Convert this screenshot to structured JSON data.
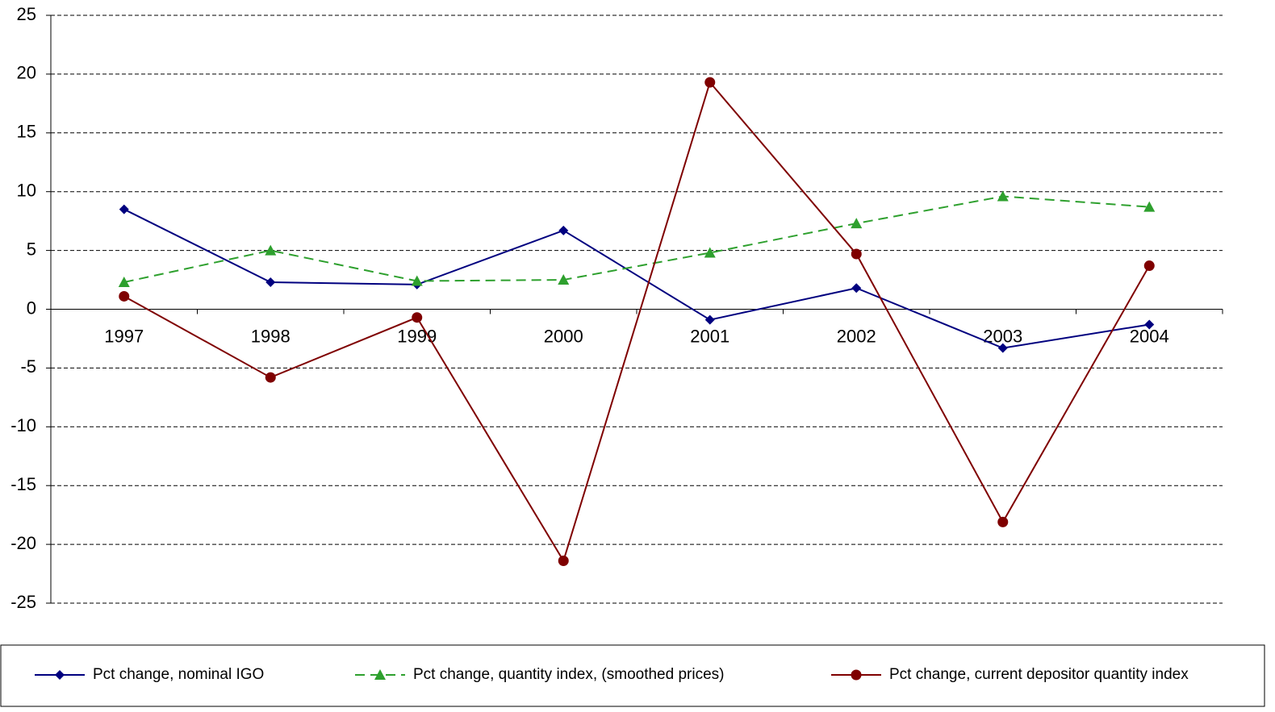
{
  "chart_data": {
    "type": "line",
    "categories": [
      "1997",
      "1998",
      "1999",
      "2000",
      "2001",
      "2002",
      "2003",
      "2004"
    ],
    "series": [
      {
        "name": "Pct change, nominal IGO",
        "color": "#00007f",
        "marker": "diamond",
        "dash": false,
        "values": [
          8.5,
          2.3,
          2.1,
          6.7,
          -0.9,
          1.8,
          -3.3,
          -1.3
        ]
      },
      {
        "name": "Pct change, quantity index, (smoothed prices)",
        "color": "#2ea02e",
        "marker": "triangle",
        "dash": true,
        "values": [
          2.3,
          5.0,
          2.4,
          2.5,
          4.8,
          7.3,
          9.6,
          8.7
        ]
      },
      {
        "name": "Pct change, current depositor quantity index",
        "color": "#7f0000",
        "marker": "circle",
        "dash": false,
        "values": [
          1.1,
          -5.8,
          -0.7,
          -21.4,
          19.3,
          4.7,
          -18.1,
          3.7
        ]
      }
    ],
    "ylim": [
      -25,
      25
    ],
    "yticks": [
      -25,
      -20,
      -15,
      -10,
      -5,
      0,
      5,
      10,
      15,
      20,
      25
    ],
    "grid": true,
    "legend": "bottom"
  }
}
